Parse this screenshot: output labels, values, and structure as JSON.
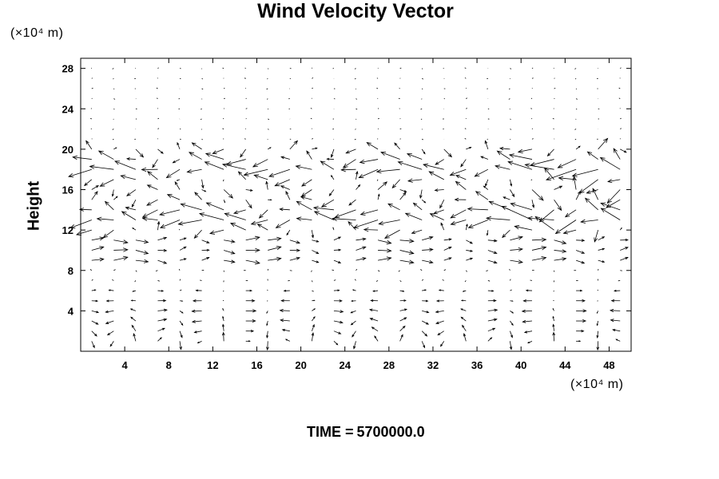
{
  "chart_data": {
    "type": "vector-field",
    "title": "Wind Velocity Vector",
    "ylabel": "Height",
    "xunit_label": "(×10⁴ m)",
    "yunit_label": "(×10⁴ m)",
    "xlim": [
      0,
      50
    ],
    "ylim": [
      0,
      29
    ],
    "xticks": [
      4,
      8,
      12,
      16,
      20,
      24,
      28,
      32,
      36,
      40,
      44,
      48
    ],
    "yticks": [
      4,
      8,
      12,
      16,
      20,
      24,
      28
    ],
    "grid_dx": 2,
    "grid_dy": 1,
    "legend": "none",
    "grid": false,
    "color": "#000000",
    "footer_label": "TIME =",
    "footer_value": "5700000.0"
  }
}
